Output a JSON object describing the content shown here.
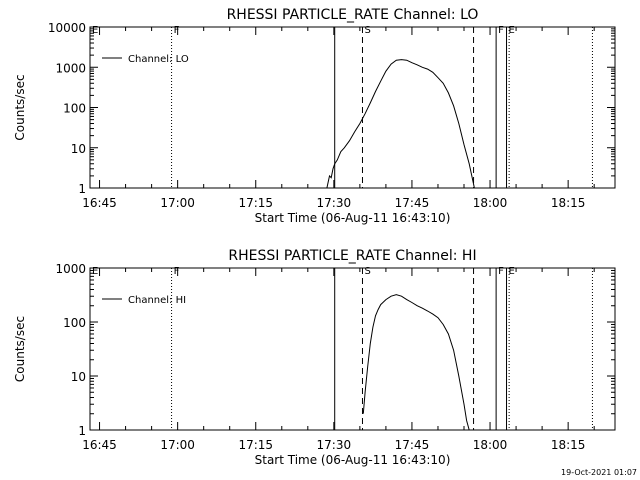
{
  "chart_data": [
    {
      "type": "line",
      "title": "RHESSI PARTICLE_RATE Channel: LO",
      "xlabel": "Start Time (06-Aug-11 16:43:10)",
      "ylabel": "Counts/sec",
      "yscale": "log",
      "xlim": [
        "16:43:10",
        "18:24:00"
      ],
      "ylim": [
        1,
        10000
      ],
      "xticks": [
        "16:45",
        "17:00",
        "17:15",
        "17:30",
        "17:45",
        "18:00",
        "18:15"
      ],
      "yticks": [
        "1",
        "10",
        "100",
        "1000",
        "10000"
      ],
      "legend_placement": "top-left",
      "grid": false,
      "series": [
        {
          "name": "Channel: LO",
          "x": [
            "17:28:40",
            "17:29:10",
            "17:29:30",
            "17:29:50",
            "17:30:10",
            "17:30:40",
            "17:31:20",
            "17:32:00",
            "17:33:00",
            "17:34:00",
            "17:35:00",
            "17:36:00",
            "17:37:00",
            "17:38:00",
            "17:39:00",
            "17:40:00",
            "17:41:00",
            "17:42:00",
            "17:43:00",
            "17:44:00",
            "17:45:00",
            "17:46:00",
            "17:47:00",
            "17:48:00",
            "17:49:00",
            "17:50:00",
            "17:51:00",
            "17:52:00",
            "17:53:00",
            "17:54:00",
            "17:55:00",
            "17:56:00",
            "17:56:30",
            "17:57:00"
          ],
          "values": [
            1,
            2,
            1.8,
            3,
            4,
            5,
            8,
            10,
            15,
            25,
            40,
            70,
            130,
            250,
            450,
            800,
            1200,
            1500,
            1550,
            1500,
            1300,
            1150,
            1000,
            900,
            750,
            550,
            400,
            230,
            110,
            40,
            12,
            4,
            2,
            1
          ]
        }
      ],
      "markers": [
        {
          "time": "16:43:10",
          "label": "E",
          "style": "solid"
        },
        {
          "time": "16:58:50",
          "label": "F",
          "style": "dotted"
        },
        {
          "time": "17:30:10",
          "label": "",
          "style": "solid"
        },
        {
          "time": "17:35:30",
          "label": "S",
          "style": "dashed"
        },
        {
          "time": "17:56:50",
          "label": "",
          "style": "dashed"
        },
        {
          "time": "18:01:10",
          "label": "F",
          "style": "solid"
        },
        {
          "time": "18:03:10",
          "label": "E",
          "style": "solid"
        },
        {
          "time": "18:03:40",
          "label": "",
          "style": "dotted"
        },
        {
          "time": "18:19:40",
          "label": "",
          "style": "dotted"
        }
      ]
    },
    {
      "type": "line",
      "title": "RHESSI PARTICLE_RATE Channel: HI",
      "xlabel": "Start Time (06-Aug-11 16:43:10)",
      "ylabel": "Counts/sec",
      "yscale": "log",
      "xlim": [
        "16:43:10",
        "18:24:00"
      ],
      "ylim": [
        1,
        1000
      ],
      "xticks": [
        "16:45",
        "17:00",
        "17:15",
        "17:30",
        "17:45",
        "18:00",
        "18:15"
      ],
      "yticks": [
        "1",
        "10",
        "100",
        "1000"
      ],
      "legend_placement": "top-left",
      "grid": false,
      "series": [
        {
          "name": "Channel: HI",
          "x": [
            "17:35:40",
            "17:36:00",
            "17:36:30",
            "17:37:00",
            "17:37:30",
            "17:38:00",
            "17:38:30",
            "17:39:00",
            "17:40:00",
            "17:41:00",
            "17:42:00",
            "17:43:00",
            "17:44:00",
            "17:45:00",
            "17:46:00",
            "17:47:00",
            "17:48:00",
            "17:49:00",
            "17:50:00",
            "17:51:00",
            "17:52:00",
            "17:53:00",
            "17:54:00",
            "17:55:00",
            "17:55:30",
            "17:56:00"
          ],
          "values": [
            2,
            5,
            15,
            40,
            80,
            130,
            170,
            210,
            260,
            300,
            320,
            300,
            260,
            230,
            200,
            180,
            160,
            140,
            120,
            90,
            60,
            30,
            10,
            3,
            1.5,
            1
          ]
        }
      ],
      "markers": [
        {
          "time": "16:43:10",
          "label": "E",
          "style": "solid"
        },
        {
          "time": "16:58:50",
          "label": "F",
          "style": "dotted"
        },
        {
          "time": "17:30:10",
          "label": "",
          "style": "solid"
        },
        {
          "time": "17:35:30",
          "label": "S",
          "style": "dashed"
        },
        {
          "time": "17:56:50",
          "label": "",
          "style": "dashed"
        },
        {
          "time": "18:01:10",
          "label": "F",
          "style": "solid"
        },
        {
          "time": "18:03:10",
          "label": "E",
          "style": "solid"
        },
        {
          "time": "18:03:40",
          "label": "",
          "style": "dotted"
        },
        {
          "time": "18:19:40",
          "label": "",
          "style": "dotted"
        }
      ]
    }
  ],
  "footer": {
    "timestamp": "19-Oct-2021 01:07"
  },
  "colors": {
    "foreground": "#000000",
    "background": "#ffffff"
  }
}
